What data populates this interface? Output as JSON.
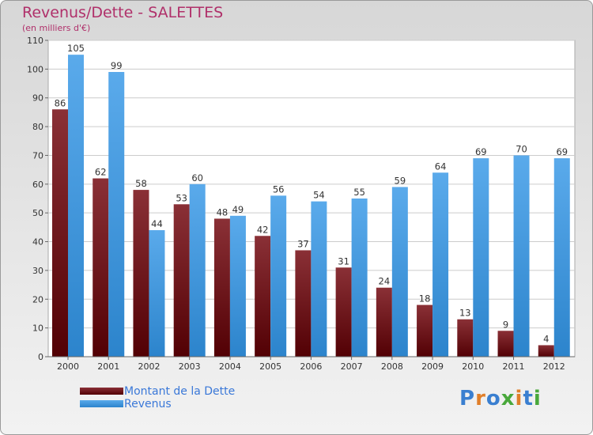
{
  "header": {
    "title": "Revenus/Dette - SALETTES",
    "subtitle": "(en milliers d'€)"
  },
  "legend": {
    "debt_label": "Montant de la Dette",
    "revenue_label": "Revenus"
  },
  "brand": {
    "logo": "Proxiti"
  },
  "colors": {
    "debt_top": "#8a3036",
    "debt_bottom": "#520004",
    "revenue_top": "#5aaaeb",
    "revenue_bottom": "#2c84cc",
    "title": "#b0306a",
    "legend_text": "#3a78d8"
  },
  "chart_data": {
    "type": "bar",
    "title": "Revenus/Dette - SALETTES",
    "ylabel": "(en milliers d'€)",
    "xlabel": "",
    "ylim": [
      0,
      110
    ],
    "yticks": [
      0,
      10,
      20,
      30,
      40,
      50,
      60,
      70,
      80,
      90,
      100,
      110
    ],
    "grid": true,
    "legend_position": "bottom-left",
    "categories": [
      "2000",
      "2001",
      "2002",
      "2003",
      "2004",
      "2005",
      "2006",
      "2007",
      "2008",
      "2009",
      "2010",
      "2011",
      "2012"
    ],
    "series": [
      {
        "name": "Montant de la Dette",
        "values": [
          86,
          62,
          58,
          53,
          48,
          42,
          37,
          31,
          24,
          18,
          13,
          9,
          4
        ]
      },
      {
        "name": "Revenus",
        "values": [
          105,
          99,
          44,
          60,
          49,
          56,
          54,
          55,
          59,
          64,
          69,
          70,
          69
        ]
      }
    ]
  }
}
